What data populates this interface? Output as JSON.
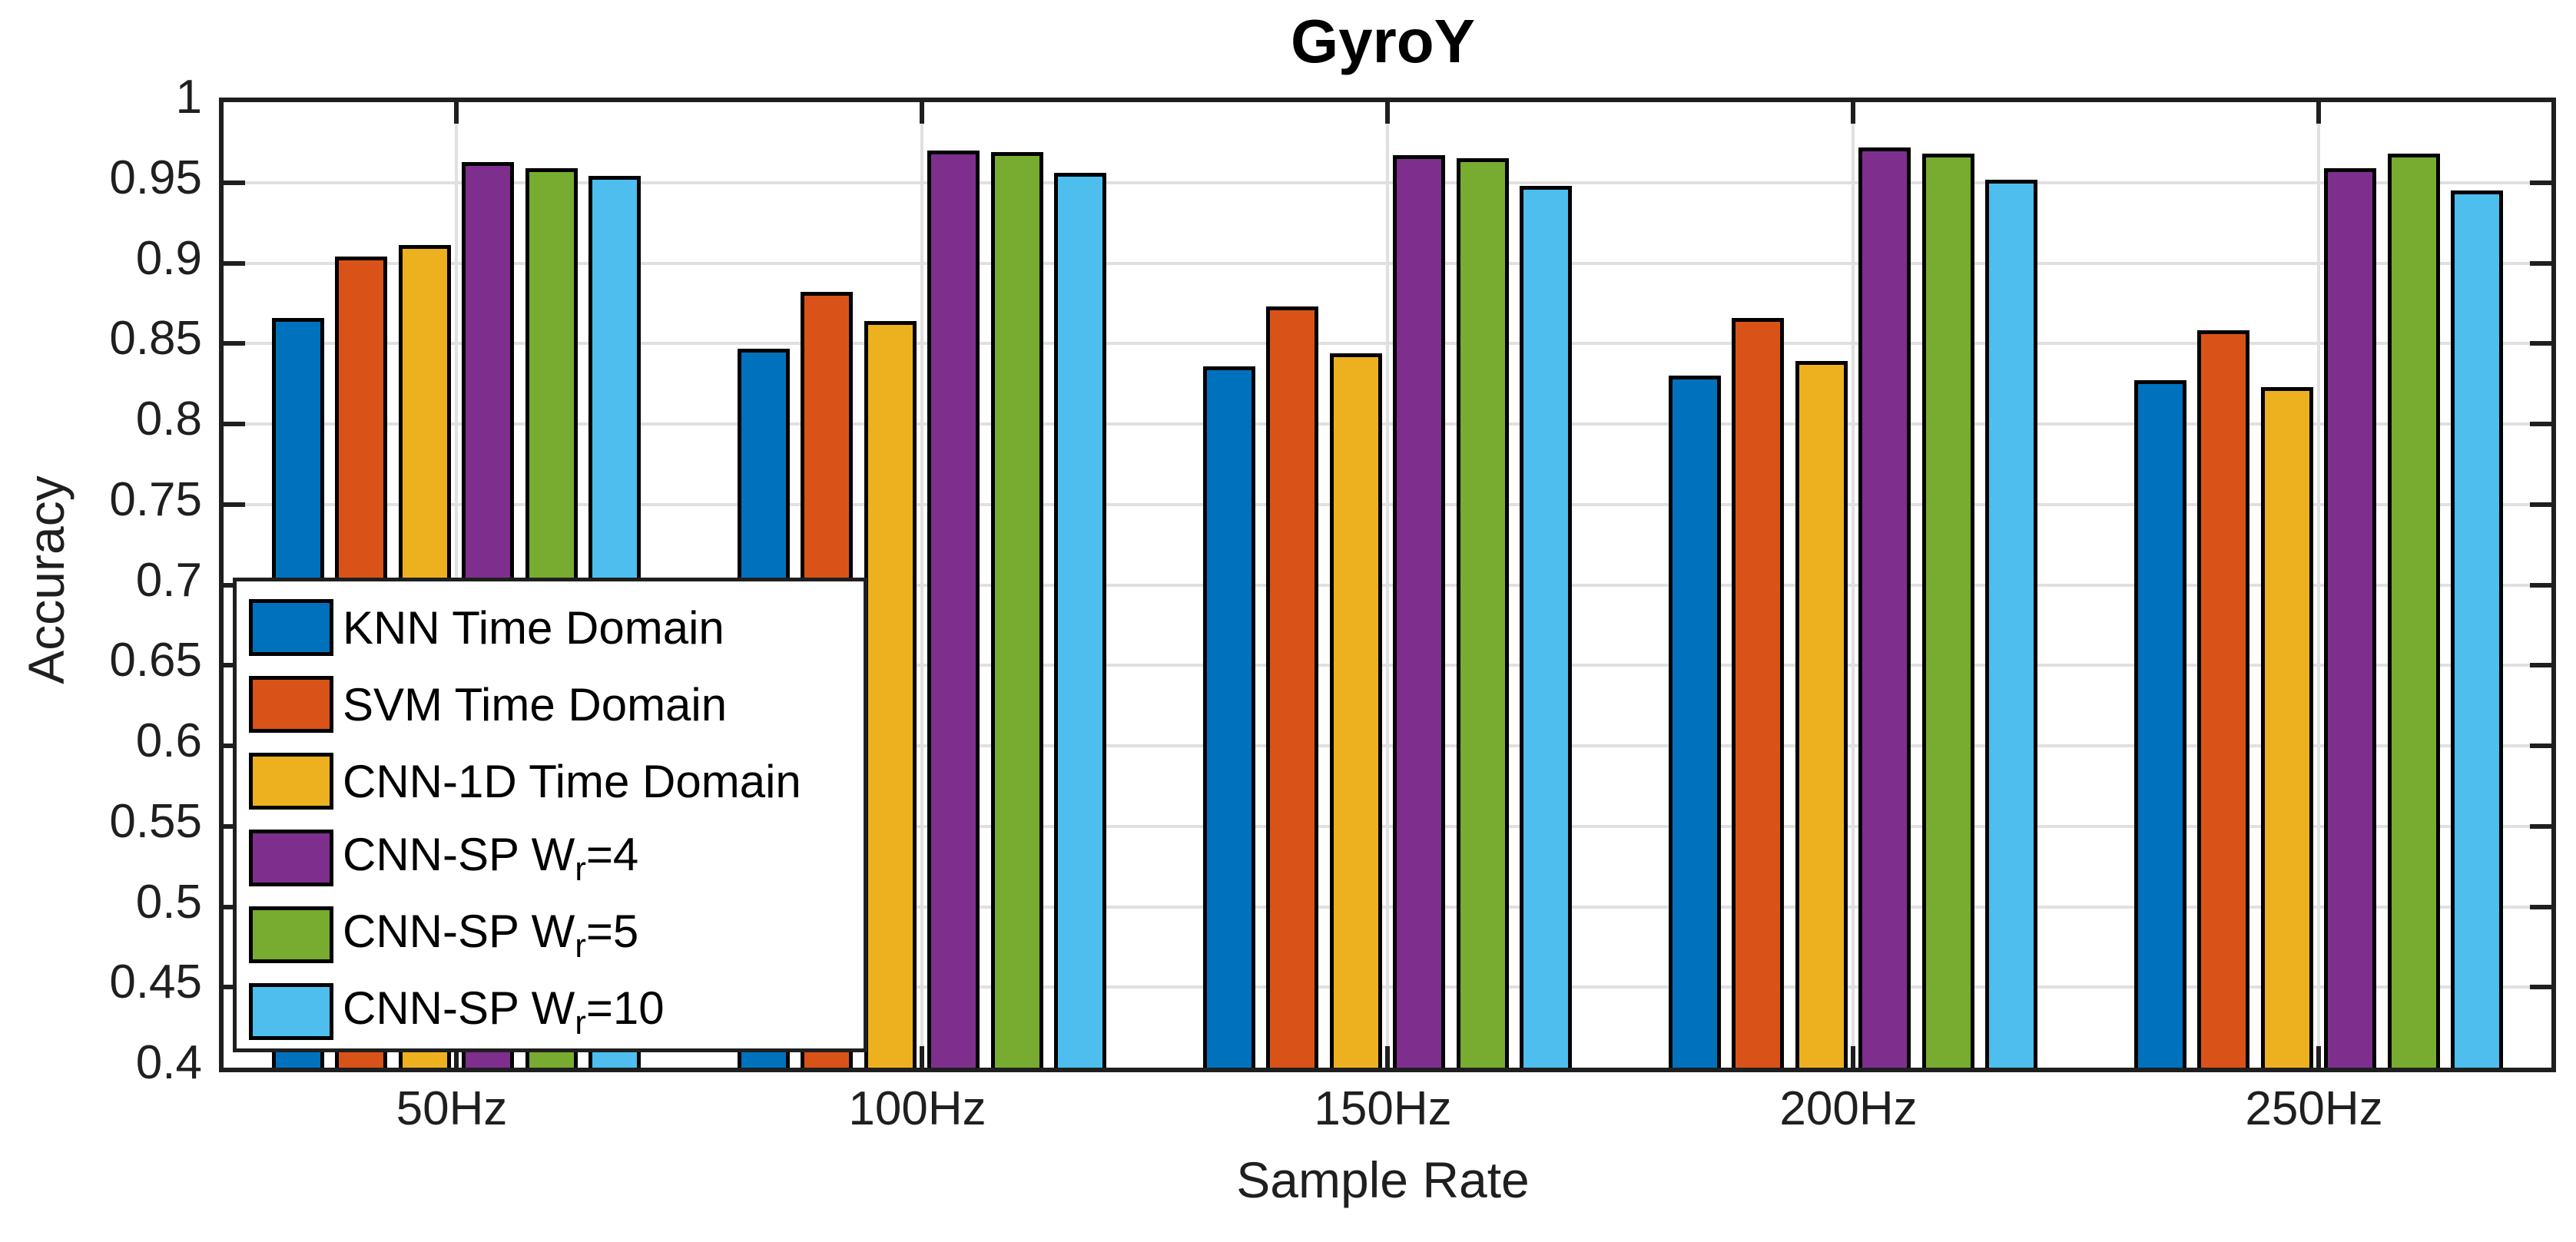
{
  "chart_data": {
    "type": "bar",
    "title": "GyroY",
    "xlabel": "Sample Rate",
    "ylabel": "Accuracy",
    "categories": [
      "50Hz",
      "100Hz",
      "150Hz",
      "200Hz",
      "250Hz"
    ],
    "series": [
      {
        "name": "KNN Time Domain",
        "color": "#0072BD",
        "values": [
          0.866,
          0.847,
          0.836,
          0.83,
          0.827
        ]
      },
      {
        "name": "SVM Time Domain",
        "color": "#D95319",
        "values": [
          0.904,
          0.882,
          0.873,
          0.866,
          0.858
        ]
      },
      {
        "name": "CNN-1D Time Domain",
        "color": "#EDB120",
        "values": [
          0.911,
          0.864,
          0.844,
          0.839,
          0.823
        ]
      },
      {
        "name": "CNN-SP Wr=4",
        "name_parts": {
          "pre": "CNN-SP W",
          "sub": "r",
          "post": "=4"
        },
        "color": "#7E2F8E",
        "values": [
          0.963,
          0.97,
          0.967,
          0.972,
          0.959
        ]
      },
      {
        "name": "CNN-SP Wr=5",
        "name_parts": {
          "pre": "CNN-SP W",
          "sub": "r",
          "post": "=5"
        },
        "color": "#77AC30",
        "values": [
          0.959,
          0.969,
          0.965,
          0.968,
          0.968
        ]
      },
      {
        "name": "CNN-SP Wr=10",
        "name_parts": {
          "pre": "CNN-SP W",
          "sub": "r",
          "post": "=10"
        },
        "color": "#4DBEEE",
        "values": [
          0.954,
          0.956,
          0.948,
          0.952,
          0.945
        ]
      }
    ],
    "ylim": [
      0.4,
      1.0
    ],
    "ytick_step": 0.05,
    "ytick_labels": [
      "0.4",
      "0.45",
      "0.5",
      "0.55",
      "0.6",
      "0.65",
      "0.7",
      "0.75",
      "0.8",
      "0.85",
      "0.9",
      "0.95",
      "1"
    ],
    "grid": true,
    "legend_position": "inside-bottom-left",
    "axis_color": "#1f1f1f",
    "grid_color": "#e0e0e0",
    "bar_edge_color": "#000000",
    "background_color": "#ffffff"
  }
}
